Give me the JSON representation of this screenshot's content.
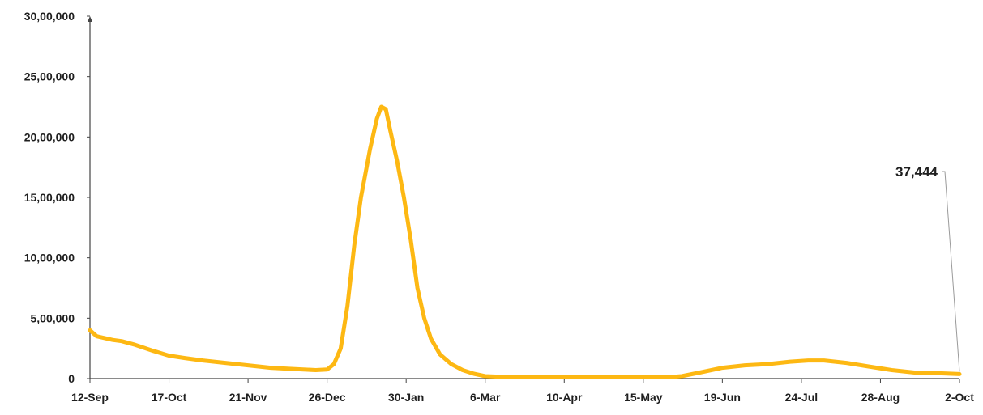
{
  "chart_data": {
    "type": "line",
    "title": "",
    "xlabel": "",
    "ylabel": "",
    "grid": false,
    "legend": "none",
    "ylim": [
      0,
      3000000
    ],
    "y_ticks": [
      {
        "value": 0,
        "label": "0"
      },
      {
        "value": 500000,
        "label": "5,00,000"
      },
      {
        "value": 1000000,
        "label": "10,00,000"
      },
      {
        "value": 1500000,
        "label": "15,00,000"
      },
      {
        "value": 2000000,
        "label": "20,00,000"
      },
      {
        "value": 2500000,
        "label": "25,00,000"
      },
      {
        "value": 3000000,
        "label": "30,00,000"
      }
    ],
    "x_ticks": [
      {
        "label": "12-Sep",
        "index": 0
      },
      {
        "label": "17-Oct",
        "index": 35
      },
      {
        "label": "21-Nov",
        "index": 70
      },
      {
        "label": "26-Dec",
        "index": 105
      },
      {
        "label": "30-Jan",
        "index": 140
      },
      {
        "label": "6-Mar",
        "index": 175
      },
      {
        "label": "10-Apr",
        "index": 210
      },
      {
        "label": "15-May",
        "index": 245
      },
      {
        "label": "19-Jun",
        "index": 280
      },
      {
        "label": "24-Jul",
        "index": 315
      },
      {
        "label": "28-Aug",
        "index": 350
      },
      {
        "label": "2-Oct",
        "index": 385
      }
    ],
    "x_max_index": 385,
    "series": [
      {
        "color": "#FDB813",
        "points": [
          [
            0,
            400000
          ],
          [
            3,
            350000
          ],
          [
            10,
            320000
          ],
          [
            14,
            310000
          ],
          [
            20,
            280000
          ],
          [
            28,
            230000
          ],
          [
            35,
            190000
          ],
          [
            42,
            170000
          ],
          [
            50,
            150000
          ],
          [
            60,
            130000
          ],
          [
            70,
            110000
          ],
          [
            80,
            90000
          ],
          [
            90,
            80000
          ],
          [
            100,
            70000
          ],
          [
            105,
            75000
          ],
          [
            108,
            120000
          ],
          [
            111,
            250000
          ],
          [
            114,
            600000
          ],
          [
            117,
            1100000
          ],
          [
            120,
            1500000
          ],
          [
            124,
            1900000
          ],
          [
            127,
            2150000
          ],
          [
            129,
            2250000
          ],
          [
            131,
            2230000
          ],
          [
            133,
            2050000
          ],
          [
            136,
            1800000
          ],
          [
            139,
            1500000
          ],
          [
            142,
            1150000
          ],
          [
            145,
            750000
          ],
          [
            148,
            500000
          ],
          [
            151,
            330000
          ],
          [
            155,
            200000
          ],
          [
            160,
            120000
          ],
          [
            165,
            70000
          ],
          [
            170,
            40000
          ],
          [
            175,
            20000
          ],
          [
            182,
            15000
          ],
          [
            190,
            10000
          ],
          [
            200,
            10000
          ],
          [
            220,
            10000
          ],
          [
            240,
            10000
          ],
          [
            255,
            10000
          ],
          [
            262,
            20000
          ],
          [
            270,
            50000
          ],
          [
            280,
            90000
          ],
          [
            290,
            110000
          ],
          [
            300,
            120000
          ],
          [
            310,
            140000
          ],
          [
            318,
            150000
          ],
          [
            325,
            150000
          ],
          [
            335,
            130000
          ],
          [
            345,
            100000
          ],
          [
            355,
            70000
          ],
          [
            365,
            50000
          ],
          [
            375,
            45000
          ],
          [
            385,
            37444
          ]
        ]
      }
    ],
    "annotations": [
      {
        "label": "37,444",
        "index": 385,
        "value": 37444
      }
    ]
  }
}
